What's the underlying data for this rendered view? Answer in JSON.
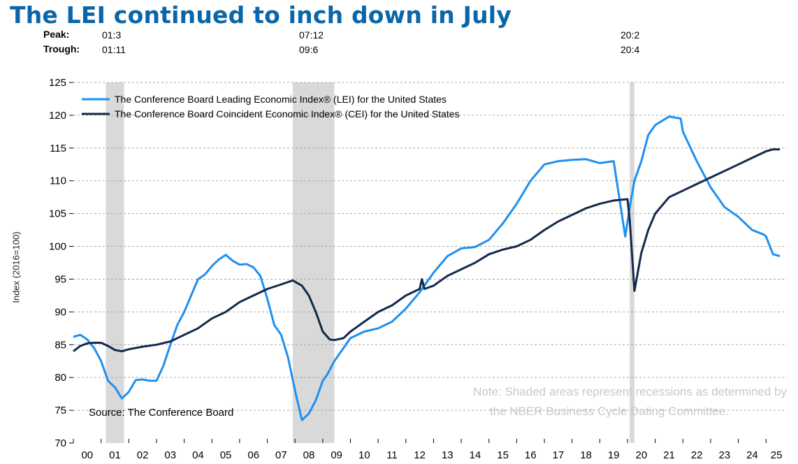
{
  "title": "The LEI continued to inch down in July",
  "cycle_table": {
    "peak_label": "Peak:",
    "trough_label": "Trough:",
    "peaks": [
      "01:3",
      "07:12",
      "20:2"
    ],
    "troughs": [
      "01:11",
      "09:6",
      "20:4"
    ]
  },
  "source": "Source: The Conference Board",
  "note_line1": "Note: Shaded areas represent recessions as determined by",
  "note_line2": "the NBER Business Cycle Dating Committee.",
  "colors": {
    "lei": "#1e90f0",
    "cei": "#13294b",
    "recession": "#d9d9d9",
    "title": "#0a66a8",
    "note": "#c8c8c8"
  },
  "chart_data": {
    "type": "line",
    "title": "The LEI continued to inch down in July",
    "xlabel": "",
    "ylabel": "Index (2016=100)",
    "ylim": [
      70,
      125
    ],
    "yticks": [
      70,
      75,
      80,
      85,
      90,
      95,
      100,
      105,
      110,
      115,
      120,
      125
    ],
    "xlim": [
      2000.0,
      2025.75
    ],
    "x_tick_labels": [
      "00",
      "01",
      "02",
      "03",
      "04",
      "05",
      "06",
      "07",
      "08",
      "09",
      "10",
      "11",
      "12",
      "13",
      "14",
      "15",
      "16",
      "17",
      "18",
      "19",
      "20",
      "21",
      "22",
      "23",
      "24",
      "25"
    ],
    "grid": "horizontal dashed",
    "legend_position": "top-left",
    "recessions": [
      [
        2001.17,
        2001.83
      ],
      [
        2007.92,
        2009.42
      ],
      [
        2020.08,
        2020.25
      ]
    ],
    "series": [
      {
        "name": "The Conference Board Leading Economic Index® (LEI) for the United States",
        "x": [
          2000.0,
          2000.25,
          2000.5,
          2000.75,
          2001.0,
          2001.25,
          2001.5,
          2001.75,
          2002.0,
          2002.25,
          2002.5,
          2002.75,
          2003.0,
          2003.25,
          2003.5,
          2003.75,
          2004.0,
          2004.25,
          2004.5,
          2004.75,
          2005.0,
          2005.25,
          2005.5,
          2005.75,
          2006.0,
          2006.25,
          2006.5,
          2006.75,
          2007.0,
          2007.25,
          2007.5,
          2007.75,
          2008.0,
          2008.25,
          2008.5,
          2008.75,
          2009.0,
          2009.17,
          2009.42,
          2009.75,
          2010.0,
          2010.5,
          2011.0,
          2011.5,
          2012.0,
          2012.5,
          2013.0,
          2013.5,
          2014.0,
          2014.5,
          2015.0,
          2015.5,
          2016.0,
          2016.5,
          2017.0,
          2017.5,
          2018.0,
          2018.5,
          2019.0,
          2019.5,
          2019.92,
          2020.08,
          2020.25,
          2020.5,
          2020.75,
          2021.0,
          2021.5,
          2021.92,
          2022.0,
          2022.5,
          2023.0,
          2023.5,
          2024.0,
          2024.5,
          2024.92,
          2025.0,
          2025.25,
          2025.5
        ],
        "values": [
          86.2,
          86.5,
          85.8,
          84.5,
          82.5,
          79.5,
          78.5,
          76.8,
          77.8,
          79.6,
          79.7,
          79.5,
          79.5,
          81.8,
          85.0,
          88.0,
          90.0,
          92.5,
          95.0,
          95.7,
          97.0,
          98.0,
          98.7,
          97.8,
          97.2,
          97.3,
          96.8,
          95.5,
          92.0,
          88.0,
          86.5,
          83.0,
          78.0,
          73.5,
          74.5,
          76.5,
          79.5,
          80.5,
          82.5,
          84.5,
          86.0,
          87.0,
          87.5,
          88.5,
          90.5,
          93.0,
          96.0,
          98.5,
          99.7,
          99.9,
          101.0,
          103.5,
          106.5,
          110.0,
          112.5,
          113.0,
          113.2,
          113.3,
          112.7,
          113.0,
          101.5,
          106.0,
          110.0,
          113.0,
          117.0,
          118.5,
          119.8,
          119.5,
          117.5,
          113.0,
          109.0,
          106.0,
          104.5,
          102.5,
          101.8,
          101.5,
          98.8,
          98.5
        ]
      },
      {
        "name": "The Conference Board Coincident Economic Index® (CEI) for the United States",
        "x": [
          2000.0,
          2000.25,
          2000.5,
          2000.75,
          2001.0,
          2001.25,
          2001.5,
          2001.75,
          2002.0,
          2002.5,
          2003.0,
          2003.5,
          2004.0,
          2004.5,
          2005.0,
          2005.5,
          2006.0,
          2006.5,
          2007.0,
          2007.5,
          2007.92,
          2008.25,
          2008.5,
          2008.75,
          2009.0,
          2009.25,
          2009.42,
          2009.75,
          2010.0,
          2010.5,
          2011.0,
          2011.5,
          2012.0,
          2012.5,
          2012.58,
          2012.67,
          2013.0,
          2013.5,
          2014.0,
          2014.5,
          2015.0,
          2015.5,
          2016.0,
          2016.5,
          2017.0,
          2017.5,
          2018.0,
          2018.5,
          2019.0,
          2019.5,
          2020.0,
          2020.08,
          2020.25,
          2020.5,
          2020.75,
          2021.0,
          2021.5,
          2022.0,
          2022.5,
          2023.0,
          2023.5,
          2024.0,
          2024.5,
          2025.0,
          2025.25,
          2025.5
        ],
        "values": [
          84.0,
          84.8,
          85.2,
          85.3,
          85.3,
          84.8,
          84.2,
          84.0,
          84.3,
          84.7,
          85.0,
          85.5,
          86.5,
          87.5,
          89.0,
          90.0,
          91.5,
          92.5,
          93.5,
          94.2,
          94.8,
          94.0,
          92.5,
          90.0,
          87.0,
          85.8,
          85.7,
          86.0,
          87.0,
          88.5,
          90.0,
          91.0,
          92.5,
          93.5,
          95.0,
          93.5,
          94.0,
          95.5,
          96.5,
          97.5,
          98.8,
          99.5,
          100.0,
          101.0,
          102.5,
          103.8,
          104.8,
          105.8,
          106.5,
          107.0,
          107.2,
          104.0,
          93.2,
          99.0,
          102.5,
          105.0,
          107.5,
          108.5,
          109.5,
          110.5,
          111.5,
          112.5,
          113.5,
          114.5,
          114.8,
          114.8
        ]
      }
    ]
  }
}
